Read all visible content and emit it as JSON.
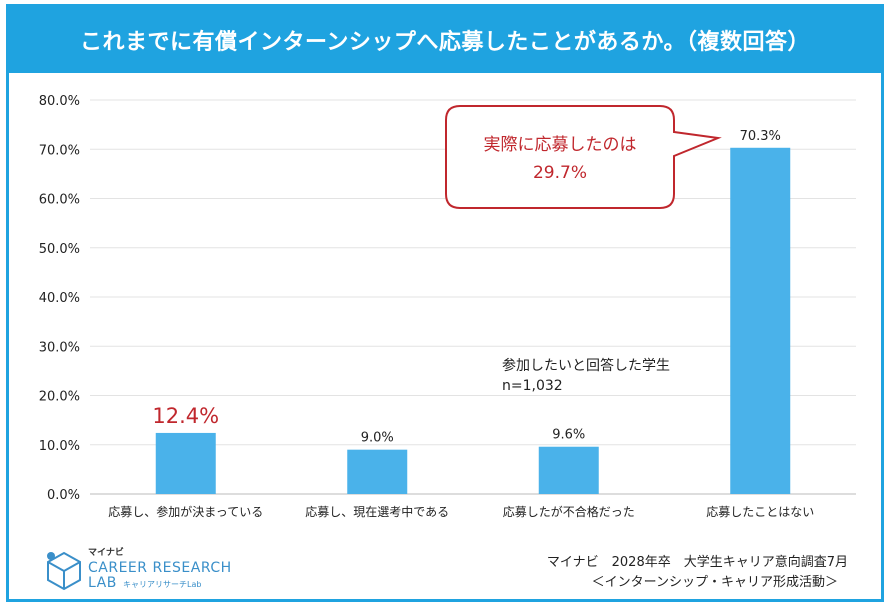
{
  "header": {
    "title": "これまでに有償インターンシップへ応募したことがあるか。（複数回答）"
  },
  "chart_data": {
    "type": "bar",
    "categories": [
      "応募し、参加が決まっている",
      "応募し、現在選考中である",
      "応募したが不合格だった",
      "応募したことはない"
    ],
    "values": [
      12.4,
      9.0,
      9.6,
      70.3
    ],
    "value_labels": [
      "12.4%",
      "9.0%",
      "9.6%",
      "70.3%"
    ],
    "ylim": [
      0,
      80
    ],
    "yticks": [
      "0.0%",
      "10.0%",
      "20.0%",
      "30.0%",
      "40.0%",
      "50.0%",
      "60.0%",
      "70.0%",
      "80.0%"
    ],
    "grid": true,
    "bar_color": "#4ab2ea",
    "highlight_color": "#c0272d"
  },
  "callout": {
    "line1": "実際に応募したのは",
    "line2": "29.7%"
  },
  "note": {
    "line1": "参加したいと回答した学生",
    "line2": "n=1,032"
  },
  "source": {
    "line1": "マイナビ　2028年卒　大学生キャリア意向調査7月",
    "line2": "＜インターンシップ・キャリア形成活動＞"
  },
  "logo": {
    "top": "マイナビ",
    "main1": "CAREER RESEARCH",
    "main2": "LAB",
    "sub": "キャリアリサーチLab"
  }
}
